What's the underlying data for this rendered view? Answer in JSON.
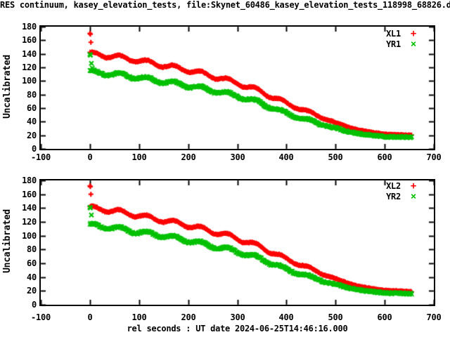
{
  "title": "RES continuum, kasey_elevation_tests, file:Skynet_60486_kasey_elevation_tests_118998_68826.d",
  "xlabel": "rel seconds : UT date 2024-06-25T14:46:16.000",
  "colors": {
    "series_red": "#ff0000",
    "series_green": "#00c000",
    "axis": "#000000",
    "background": "#ffffff"
  },
  "chart_data": [
    {
      "type": "scatter",
      "plot": "top",
      "ylabel": "Uncalibrated",
      "xlabel": "",
      "xlim": [
        -100,
        700
      ],
      "ylim": [
        0,
        180
      ],
      "xticks": [
        -100,
        0,
        100,
        200,
        300,
        400,
        500,
        600,
        700
      ],
      "yticks": [
        0,
        20,
        40,
        60,
        80,
        100,
        120,
        140,
        160,
        180
      ],
      "grid": false,
      "legend_position": "top-right",
      "series": [
        {
          "name": "XL1",
          "marker_glyph": "+",
          "color": "#ff0000",
          "t_start": 0,
          "t_end": 655,
          "trend_points": [
            [
              0,
              140
            ],
            [
              50,
              136
            ],
            [
              100,
              130
            ],
            [
              150,
              123
            ],
            [
              200,
              116
            ],
            [
              250,
              107
            ],
            [
              300,
              97
            ],
            [
              350,
              84
            ],
            [
              400,
              67
            ],
            [
              450,
              53
            ],
            [
              500,
              38
            ],
            [
              550,
              27
            ],
            [
              600,
              21.5
            ],
            [
              655,
              20
            ]
          ],
          "outliers": [
            [
              0,
              170
            ],
            [
              1,
              169
            ],
            [
              2,
              157
            ]
          ],
          "ripple": {
            "amplitude": 3.0,
            "period": 55,
            "phase": 0.8,
            "fade_start": 350,
            "fade_end": 560
          },
          "jitter": 0.7
        },
        {
          "name": "YR1",
          "marker_glyph": "×",
          "color": "#00c000",
          "t_start": 0,
          "t_end": 655,
          "trend_points": [
            [
              0,
              113
            ],
            [
              50,
              110
            ],
            [
              100,
              105
            ],
            [
              150,
              99
            ],
            [
              200,
              93
            ],
            [
              250,
              86
            ],
            [
              300,
              78
            ],
            [
              350,
              67
            ],
            [
              400,
              52
            ],
            [
              450,
              41
            ],
            [
              500,
              30
            ],
            [
              550,
              22
            ],
            [
              600,
              18
            ],
            [
              655,
              17
            ]
          ],
          "outliers": [
            [
              0,
              139
            ],
            [
              1,
              138
            ],
            [
              3,
              126
            ],
            [
              5,
              119
            ]
          ],
          "ripple": {
            "amplitude": 2.8,
            "period": 55,
            "phase": 0.8,
            "fade_start": 350,
            "fade_end": 560
          },
          "jitter": 1.2
        }
      ]
    },
    {
      "type": "scatter",
      "plot": "bottom",
      "ylabel": "Uncalibrated",
      "xlabel": "rel seconds : UT date 2024-06-25T14:46:16.000",
      "xlim": [
        -100,
        700
      ],
      "ylim": [
        0,
        180
      ],
      "xticks": [
        -100,
        0,
        100,
        200,
        300,
        400,
        500,
        600,
        700
      ],
      "yticks": [
        0,
        20,
        40,
        60,
        80,
        100,
        120,
        140,
        160,
        180
      ],
      "grid": false,
      "legend_position": "top-right",
      "series": [
        {
          "name": "XL2",
          "marker_glyph": "+",
          "color": "#ff0000",
          "t_start": 0,
          "t_end": 655,
          "trend_points": [
            [
              0,
              140
            ],
            [
              50,
              136
            ],
            [
              100,
              129
            ],
            [
              150,
              122
            ],
            [
              200,
              115
            ],
            [
              250,
              106
            ],
            [
              300,
              96
            ],
            [
              350,
              83
            ],
            [
              400,
              66
            ],
            [
              450,
              52
            ],
            [
              500,
              37
            ],
            [
              550,
              26
            ],
            [
              600,
              20.5
            ],
            [
              655,
              19
            ]
          ],
          "outliers": [
            [
              0,
              172
            ],
            [
              1,
              171
            ],
            [
              2,
              160
            ]
          ],
          "ripple": {
            "amplitude": 3.0,
            "period": 55,
            "phase": 0.8,
            "fade_start": 350,
            "fade_end": 560
          },
          "jitter": 0.7
        },
        {
          "name": "YR2",
          "marker_glyph": "×",
          "color": "#00c000",
          "t_start": 0,
          "t_end": 655,
          "trend_points": [
            [
              0,
              115
            ],
            [
              50,
              111
            ],
            [
              100,
              105
            ],
            [
              150,
              100
            ],
            [
              200,
              93
            ],
            [
              250,
              85
            ],
            [
              300,
              77
            ],
            [
              350,
              66
            ],
            [
              400,
              51
            ],
            [
              450,
              40
            ],
            [
              500,
              29
            ],
            [
              550,
              21
            ],
            [
              600,
              17
            ],
            [
              655,
              16
            ]
          ],
          "outliers": [
            [
              0,
              141
            ],
            [
              1,
              140
            ],
            [
              3,
              130
            ]
          ],
          "ripple": {
            "amplitude": 2.8,
            "period": 55,
            "phase": 0.8,
            "fade_start": 350,
            "fade_end": 560
          },
          "jitter": 1.2
        }
      ]
    }
  ]
}
